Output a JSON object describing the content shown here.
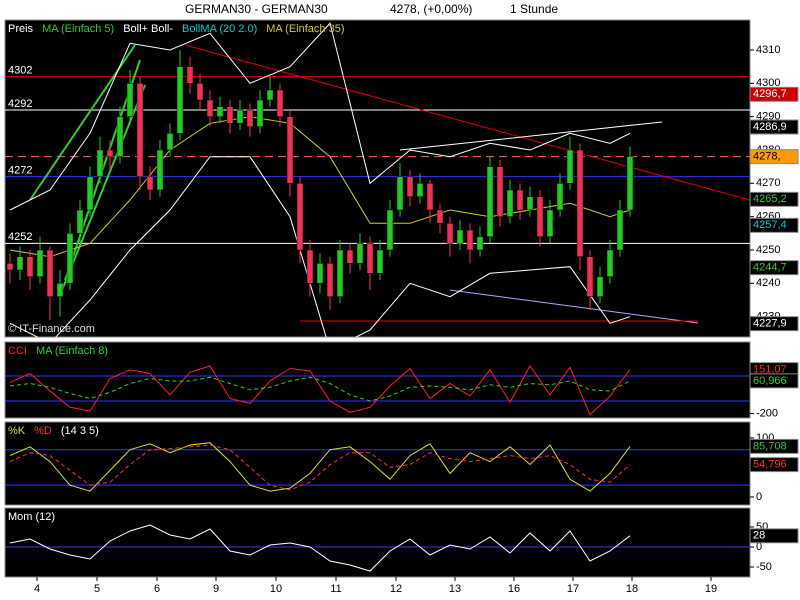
{
  "header": {
    "symbol": "GERMAN30 - GERMAN30",
    "quote": "4278, (+0,00%)",
    "period": "1 Stunde"
  },
  "chart_data": [
    {
      "type": "candlestick",
      "legend": [
        {
          "label": "Preis",
          "color": "#ffffff"
        },
        {
          "label": "MA (Einfach 5)",
          "color": "#33cc33"
        },
        {
          "label": "Boll+ Boll-",
          "color": "#ffffff"
        },
        {
          "label": "BollMA (20 2.0)",
          "color": "#00cccc"
        },
        {
          "label": "MA (Einfach 35)",
          "color": "#cccc33"
        }
      ],
      "watermark": "© IT-Finance.com",
      "up_color": "#22cc22",
      "down_color": "#ee3355",
      "open": [
        4246,
        4244,
        4248,
        4242,
        4250,
        4236,
        4240,
        4255,
        4262,
        4272,
        4280,
        4278,
        4290,
        4300,
        4272,
        4268,
        4280,
        4285,
        4305,
        4300,
        4295,
        4290,
        4293,
        4288,
        4292,
        4287,
        4295,
        4298,
        4290,
        4270,
        4250,
        4240,
        4246,
        4236,
        4250,
        4246,
        4252,
        4243,
        4250,
        4262,
        4272,
        4266,
        4270,
        4262,
        4258,
        4252,
        4256,
        4250,
        4254,
        4275,
        4260,
        4268,
        4262,
        4266,
        4254,
        4262,
        4270,
        4280,
        4248,
        4236,
        4242,
        4250,
        4262
      ],
      "high": [
        4249,
        4251,
        4250,
        4254,
        4251,
        4244,
        4258,
        4265,
        4275,
        4284,
        4283,
        4293,
        4304,
        4302,
        4275,
        4283,
        4288,
        4310,
        4308,
        4303,
        4298,
        4296,
        4295,
        4295,
        4294,
        4298,
        4302,
        4300,
        4292,
        4272,
        4253,
        4249,
        4248,
        4253,
        4252,
        4255,
        4254,
        4253,
        4265,
        4276,
        4274,
        4273,
        4271,
        4264,
        4260,
        4259,
        4258,
        4257,
        4278,
        4277,
        4271,
        4270,
        4269,
        4268,
        4265,
        4273,
        4284,
        4282,
        4250,
        4245,
        4253,
        4265,
        4281
      ],
      "low": [
        4240,
        4241,
        4238,
        4240,
        4229,
        4230,
        4238,
        4252,
        4260,
        4270,
        4274,
        4276,
        4288,
        4268,
        4265,
        4266,
        4278,
        4283,
        4297,
        4292,
        4287,
        4288,
        4285,
        4286,
        4284,
        4285,
        4293,
        4287,
        4266,
        4246,
        4236,
        4237,
        4232,
        4234,
        4243,
        4244,
        4238,
        4241,
        4248,
        4260,
        4263,
        4264,
        4258,
        4255,
        4248,
        4250,
        4246,
        4248,
        4252,
        4257,
        4258,
        4259,
        4260,
        4251,
        4252,
        4260,
        4268,
        4244,
        4232,
        4234,
        4240,
        4248,
        4260
      ],
      "close": [
        4244,
        4248,
        4242,
        4250,
        4236,
        4240,
        4255,
        4262,
        4272,
        4280,
        4278,
        4290,
        4300,
        4272,
        4268,
        4280,
        4285,
        4305,
        4300,
        4295,
        4290,
        4293,
        4288,
        4292,
        4287,
        4295,
        4298,
        4290,
        4270,
        4250,
        4240,
        4246,
        4236,
        4250,
        4246,
        4252,
        4243,
        4250,
        4262,
        4272,
        4266,
        4270,
        4262,
        4258,
        4252,
        4256,
        4250,
        4254,
        4275,
        4260,
        4268,
        4262,
        4266,
        4254,
        4262,
        4270,
        4280,
        4248,
        4236,
        4242,
        4250,
        4262,
        4278
      ],
      "overlays": [
        {
          "color": "#ffffff",
          "x": [
            0,
            4,
            8,
            12,
            16,
            20,
            24,
            28,
            32,
            36,
            40,
            44,
            48,
            52,
            56,
            60,
            62
          ],
          "values": [
            4262,
            4268,
            4285,
            4312,
            4310,
            4315,
            4300,
            4305,
            4318,
            4270,
            4280,
            4278,
            4282,
            4280,
            4285,
            4282,
            4285
          ]
        },
        {
          "color": "#ffffff",
          "x": [
            0,
            4,
            8,
            12,
            16,
            20,
            24,
            28,
            32,
            36,
            40,
            44,
            48,
            52,
            56,
            60,
            62
          ],
          "values": [
            4228,
            4222,
            4235,
            4250,
            4262,
            4278,
            4278,
            4260,
            4220,
            4226,
            4240,
            4236,
            4243,
            4244,
            4245,
            4228,
            4230
          ]
        },
        {
          "color": "#cccc33",
          "x": [
            0,
            4,
            8,
            12,
            16,
            20,
            24,
            28,
            32,
            36,
            40,
            44,
            48,
            52,
            56,
            60,
            62
          ],
          "values": [
            4250,
            4248,
            4252,
            4265,
            4280,
            4288,
            4290,
            4288,
            4278,
            4258,
            4258,
            4262,
            4260,
            4262,
            4264,
            4260,
            4262
          ]
        }
      ],
      "levels": [
        {
          "value": 4302,
          "color": "#dd0000"
        },
        {
          "value": 4292,
          "color": "#ffffff"
        },
        {
          "value": 4272,
          "color": "#3333ff"
        },
        {
          "value": 4252,
          "color": "#ffffff"
        }
      ],
      "dashed_levels": [
        {
          "value": 4278,
          "color": "#ff6655"
        }
      ],
      "price_labels": [
        {
          "value": 4296.7,
          "label": "4296,7",
          "background": "#cc0000",
          "color": "#ffffff"
        },
        {
          "value": 4286.9,
          "label": "4286,9",
          "background": "#000000",
          "color": "#ffffff"
        },
        {
          "value": 4278,
          "label": "4278,",
          "background": "#ff9900",
          "color": "#000000"
        },
        {
          "value": 4265.2,
          "label": "4265,2",
          "background": "#000000",
          "color": "#33cc33"
        },
        {
          "value": 4257.4,
          "label": "4257,4",
          "background": "#000000",
          "color": "#00cccc"
        },
        {
          "value": 4244.7,
          "label": "4244,7",
          "background": "#000000",
          "color": "#33cc33"
        },
        {
          "value": 4227.9,
          "label": "4227,9",
          "background": "#000000",
          "color": "#ffffff"
        }
      ],
      "xlim": [
        -0.5,
        74
      ],
      "ylim": [
        4223.9,
        4319
      ],
      "yticks": [
        4310,
        4300,
        4290,
        4280,
        4270,
        4260,
        4250,
        4240,
        4230
      ]
    },
    {
      "type": "line",
      "legend": [
        {
          "label": "CCI",
          "color": "#ff2222"
        },
        {
          "label": "MA (Einfach 8)",
          "color": "#33cc33"
        }
      ],
      "x": [
        0,
        2,
        4,
        6,
        8,
        10,
        12,
        14,
        16,
        18,
        20,
        22,
        24,
        26,
        28,
        30,
        32,
        34,
        36,
        38,
        40,
        42,
        44,
        46,
        48,
        50,
        52,
        54,
        56,
        58,
        60,
        62
      ],
      "series": [
        {
          "color": "#ff2222",
          "values": [
            50,
            120,
            -20,
            -150,
            -180,
            80,
            150,
            120,
            -50,
            130,
            180,
            -80,
            -120,
            60,
            160,
            140,
            -100,
            -190,
            -150,
            20,
            160,
            -80,
            40,
            -60,
            150,
            -110,
            180,
            -50,
            170,
            -210,
            -60,
            151.07
          ]
        },
        {
          "color": "#33cc33",
          "dashed": true,
          "values": [
            20,
            40,
            10,
            -40,
            -80,
            -30,
            40,
            80,
            60,
            60,
            90,
            40,
            -10,
            10,
            60,
            90,
            40,
            -50,
            -100,
            -60,
            10,
            20,
            10,
            -10,
            30,
            10,
            40,
            30,
            60,
            -10,
            -20,
            60.966
          ]
        }
      ],
      "levels": [
        {
          "value": 100,
          "color": "#3333ff"
        },
        {
          "value": -100,
          "color": "#3333ff"
        }
      ],
      "price_labels": [
        {
          "value": 151.07,
          "label": "151,07",
          "background": "#000000",
          "color": "#ff2222"
        },
        {
          "value": 60.966,
          "label": "60,966",
          "background": "#000000",
          "color": "#33cc33"
        }
      ],
      "xlim": [
        -0.5,
        74
      ],
      "ylim": [
        -236,
        372
      ],
      "yticks": [
        -200
      ]
    },
    {
      "type": "line",
      "legend": [
        {
          "label": "%K",
          "color": "#dddd33"
        },
        {
          "label": "%D",
          "color": "#ff3333"
        },
        {
          "label": "(14 3 5)",
          "color": "#ffffff"
        }
      ],
      "x": [
        0,
        2,
        4,
        6,
        8,
        10,
        12,
        14,
        16,
        18,
        20,
        22,
        24,
        26,
        28,
        30,
        32,
        34,
        36,
        38,
        40,
        42,
        44,
        46,
        48,
        50,
        52,
        54,
        56,
        58,
        60,
        62
      ],
      "series": [
        {
          "color": "#dddd33",
          "values": [
            70,
            85,
            60,
            20,
            10,
            45,
            80,
            90,
            75,
            88,
            92,
            60,
            20,
            10,
            15,
            40,
            80,
            85,
            60,
            30,
            70,
            90,
            40,
            75,
            60,
            85,
            55,
            88,
            30,
            10,
            40,
            85.708
          ]
        },
        {
          "color": "#ff3333",
          "dashed": true,
          "values": [
            60,
            75,
            70,
            45,
            20,
            25,
            55,
            80,
            82,
            85,
            88,
            80,
            50,
            20,
            12,
            25,
            55,
            75,
            75,
            50,
            55,
            75,
            65,
            60,
            65,
            70,
            65,
            70,
            55,
            30,
            25,
            54.796
          ]
        }
      ],
      "levels": [
        {
          "value": 80,
          "color": "#3333ff"
        },
        {
          "value": 20,
          "color": "#3333ff"
        }
      ],
      "price_labels": [
        {
          "value": 85.708,
          "label": "85,708",
          "background": "#000000",
          "color": "#33cc33"
        },
        {
          "value": 54.796,
          "label": "54,796",
          "background": "#000000",
          "color": "#ff3333"
        }
      ],
      "xlim": [
        -0.5,
        74
      ],
      "ylim": [
        -13.6,
        127
      ],
      "yticks": [
        100,
        0
      ]
    },
    {
      "type": "line",
      "legend": [
        {
          "label": "Mom (12)",
          "color": "#ffffff"
        }
      ],
      "x": [
        0,
        2,
        4,
        6,
        8,
        10,
        12,
        14,
        16,
        18,
        20,
        22,
        24,
        26,
        28,
        30,
        32,
        34,
        36,
        38,
        40,
        42,
        44,
        46,
        48,
        50,
        52,
        54,
        56,
        58,
        60,
        62
      ],
      "series": [
        {
          "color": "#ffffff",
          "values": [
            10,
            20,
            -5,
            -20,
            -30,
            15,
            40,
            55,
            30,
            20,
            45,
            -10,
            -20,
            5,
            10,
            0,
            -35,
            -45,
            -60,
            -10,
            20,
            -20,
            5,
            -5,
            25,
            -15,
            35,
            -10,
            40,
            -35,
            -10,
            28
          ]
        }
      ],
      "levels": [
        {
          "value": 0,
          "color": "#3333ff"
        }
      ],
      "price_labels": [
        {
          "value": 28,
          "label": "28",
          "background": "#000000",
          "color": "#ffffff"
        }
      ],
      "xlim": [
        -0.5,
        74
      ],
      "ylim": [
        -75,
        97.5
      ],
      "yticks": [
        50,
        0,
        -50
      ],
      "xticks": [
        {
          "value": 2.7,
          "label": "4"
        },
        {
          "value": 8.7,
          "label": "5"
        },
        {
          "value": 14.7,
          "label": "6"
        },
        {
          "value": 20.6,
          "label": "9"
        },
        {
          "value": 26.6,
          "label": "10"
        },
        {
          "value": 32.6,
          "label": "11"
        },
        {
          "value": 38.6,
          "label": "12"
        },
        {
          "value": 44.5,
          "label": "13"
        },
        {
          "value": 50.4,
          "label": "16"
        },
        {
          "value": 56.3,
          "label": "17"
        },
        {
          "value": 62.2,
          "label": "18"
        },
        {
          "value": 70.1,
          "label": "19"
        }
      ]
    }
  ]
}
